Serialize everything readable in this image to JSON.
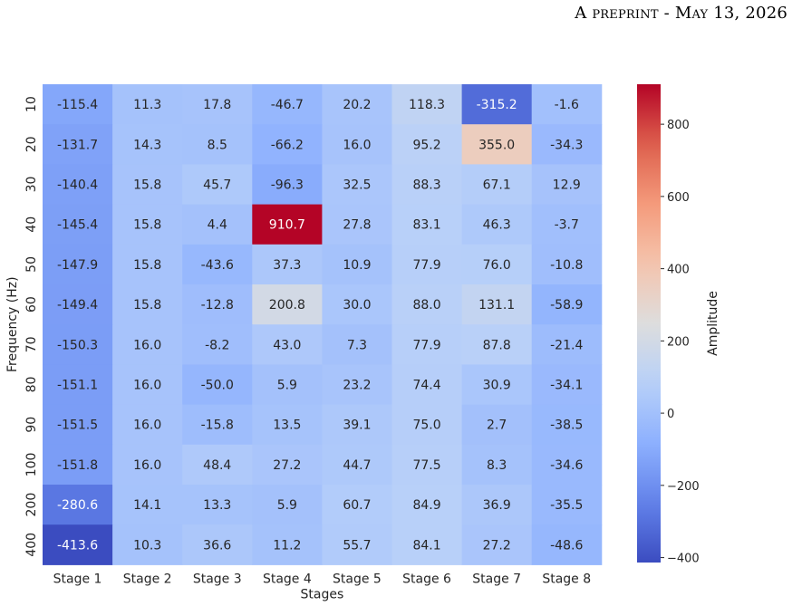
{
  "header": {
    "prefix": "A",
    "preprint_word": "preprint",
    "sep": " - ",
    "date": "May 13, 2026"
  },
  "chart_data": {
    "type": "heatmap",
    "colormap": "coolwarm",
    "xlabel": "Stages",
    "ylabel": "Frequency (Hz)",
    "colorbar_label": "Amplitude",
    "x_categories": [
      "Stage 1",
      "Stage 2",
      "Stage 3",
      "Stage 4",
      "Stage 5",
      "Stage 6",
      "Stage 7",
      "Stage 8"
    ],
    "y_categories": [
      "10",
      "20",
      "30",
      "40",
      "50",
      "60",
      "70",
      "80",
      "90",
      "100",
      "200",
      "400"
    ],
    "values": [
      [
        -115.4,
        11.3,
        17.8,
        -46.7,
        20.2,
        118.3,
        -315.2,
        -1.6
      ],
      [
        -131.7,
        14.3,
        8.5,
        -66.2,
        16.0,
        95.2,
        355.0,
        -34.3
      ],
      [
        -140.4,
        15.8,
        45.7,
        -96.3,
        32.5,
        88.3,
        67.1,
        12.9
      ],
      [
        -145.4,
        15.8,
        4.4,
        910.7,
        27.8,
        83.1,
        46.3,
        -3.7
      ],
      [
        -147.9,
        15.8,
        -43.6,
        37.3,
        10.9,
        77.9,
        76.0,
        -10.8
      ],
      [
        -149.4,
        15.8,
        -12.8,
        200.8,
        30.0,
        88.0,
        131.1,
        -58.9
      ],
      [
        -150.3,
        16.0,
        -8.2,
        43.0,
        7.3,
        77.9,
        87.8,
        -21.4
      ],
      [
        -151.1,
        16.0,
        -50.0,
        5.9,
        23.2,
        74.4,
        30.9,
        -34.1
      ],
      [
        -151.5,
        16.0,
        -15.8,
        13.5,
        39.1,
        75.0,
        2.7,
        -38.5
      ],
      [
        -151.8,
        16.0,
        48.4,
        27.2,
        44.7,
        77.5,
        8.3,
        -34.6
      ],
      [
        -280.6,
        14.1,
        13.3,
        5.9,
        60.7,
        84.9,
        36.9,
        -35.5
      ],
      [
        -413.6,
        10.3,
        36.6,
        11.2,
        55.7,
        84.1,
        27.2,
        -48.6
      ]
    ],
    "value_format": "0.1f",
    "colorbar_range": [
      -413.6,
      910.7
    ],
    "colorbar_ticks": [
      -400,
      -200,
      0,
      200,
      400,
      600,
      800
    ],
    "colorbar_tick_labels": [
      "−400",
      "−200",
      "0",
      "200",
      "400",
      "600",
      "800"
    ]
  }
}
